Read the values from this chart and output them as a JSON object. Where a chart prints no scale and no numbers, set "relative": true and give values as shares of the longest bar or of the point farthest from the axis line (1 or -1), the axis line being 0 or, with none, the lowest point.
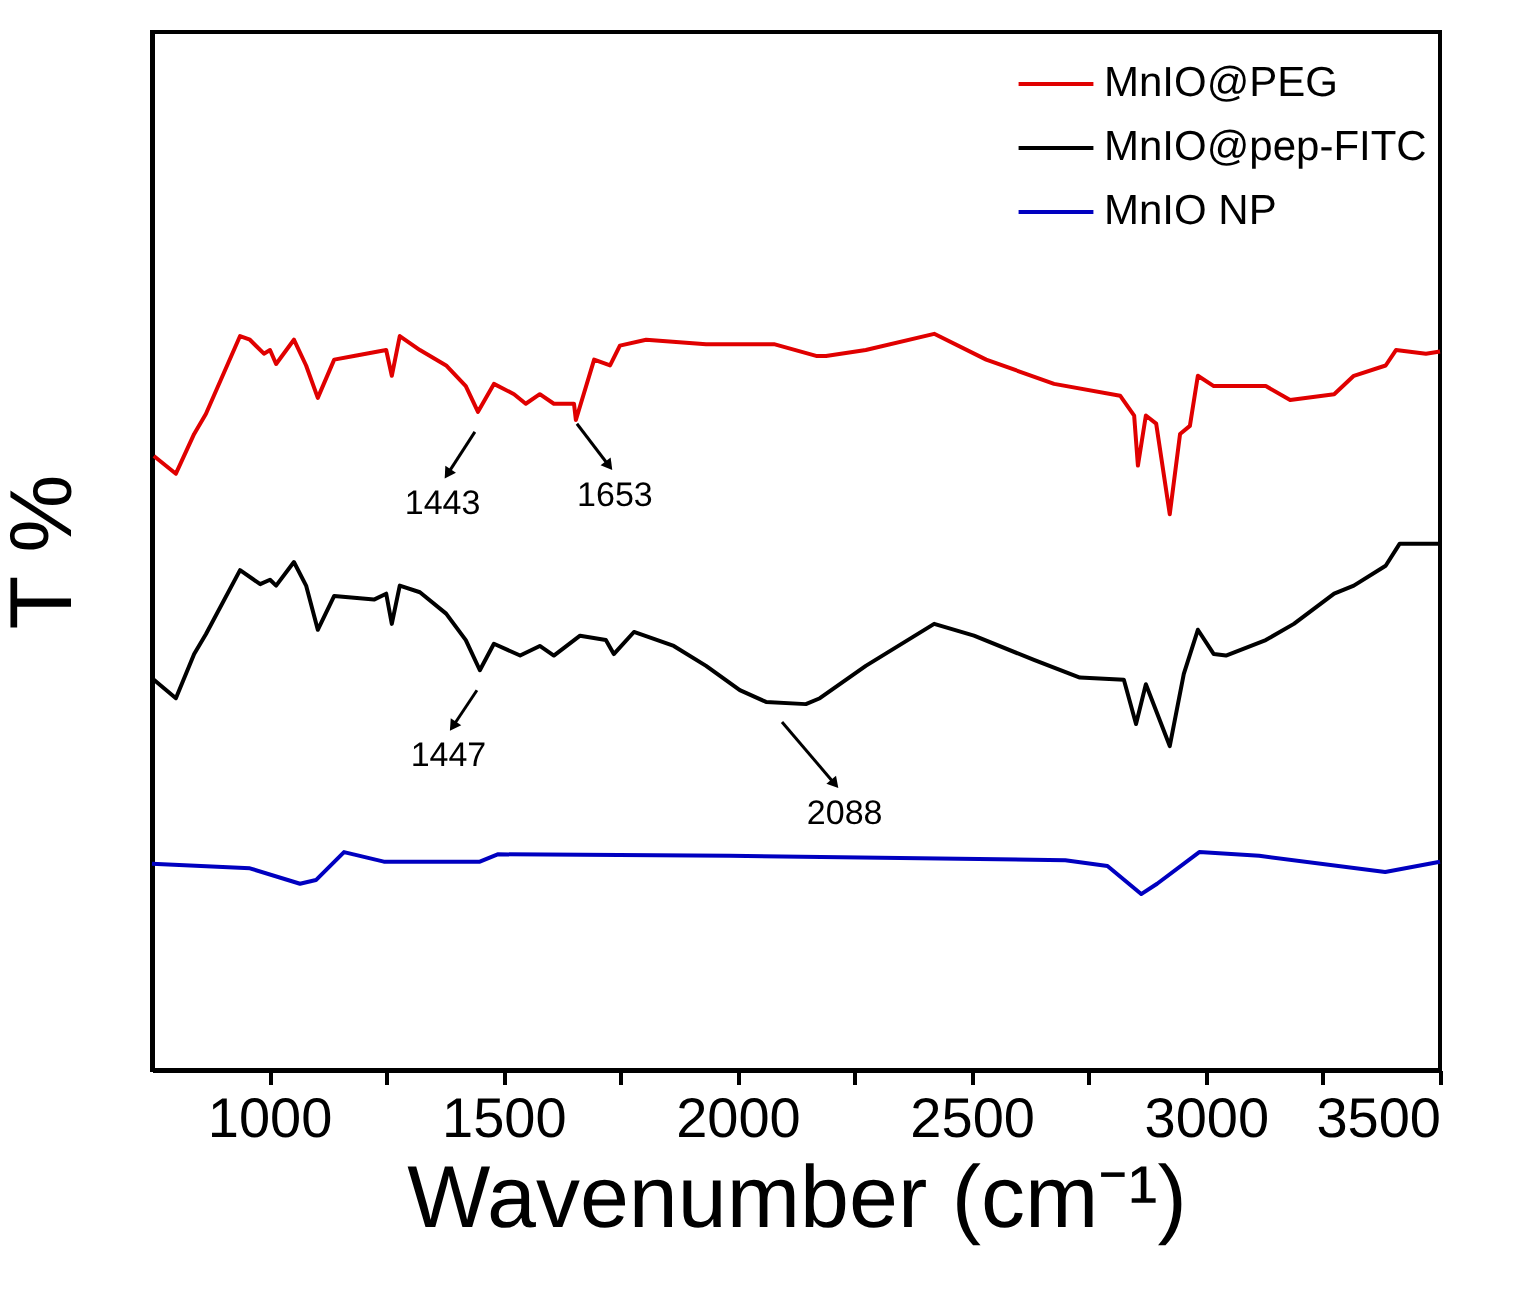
{
  "chart_data": {
    "type": "line",
    "relative": true,
    "xlabel": "Wavenumber (cm⁻¹)",
    "ylabel": "T %",
    "xlim": [
      750,
      3500
    ],
    "xticks": [
      1000,
      {
        "value": 1250,
        "label": null
      },
      1500,
      {
        "value": 1750,
        "label": null
      },
      2000,
      {
        "value": 2250,
        "label": null
      },
      2500,
      {
        "value": 2750,
        "label": null
      },
      3000,
      {
        "value": 3250,
        "label": null
      },
      3500
    ],
    "legend": "top right",
    "grid": false,
    "marker": "none",
    "line_style": "solid",
    "series": [
      {
        "name": "MnIO@PEG",
        "color": "#e00000",
        "x": [
          754,
          801,
          840,
          865,
          938,
          959,
          989,
          1002,
          1015,
          1053,
          1079,
          1104,
          1139,
          1181,
          1250,
          1262,
          1279,
          1322,
          1378,
          1420,
          1446,
          1480,
          1523,
          1548,
          1578,
          1608,
          1651,
          1655,
          1694,
          1728,
          1749,
          1805,
          1933,
          2078,
          2168,
          2189,
          2274,
          2420,
          2531,
          2676,
          2817,
          2847,
          2855,
          2872,
          2894,
          2923,
          2945,
          2966,
          2983,
          3017,
          3128,
          3180,
          3274,
          3316,
          3384,
          3406,
          3470,
          3500
        ],
        "values": [
          0.834,
          0.81,
          0.864,
          0.891,
          0.997,
          0.992,
          0.973,
          0.978,
          0.959,
          0.992,
          0.957,
          0.913,
          0.965,
          0.97,
          0.978,
          0.943,
          0.997,
          0.978,
          0.957,
          0.929,
          0.894,
          0.932,
          0.918,
          0.905,
          0.918,
          0.905,
          0.905,
          0.883,
          0.965,
          0.957,
          0.984,
          0.992,
          0.986,
          0.986,
          0.97,
          0.97,
          0.978,
          1.0,
          0.965,
          0.932,
          0.916,
          0.889,
          0.821,
          0.889,
          0.878,
          0.755,
          0.864,
          0.875,
          0.943,
          0.929,
          0.929,
          0.91,
          0.918,
          0.943,
          0.957,
          0.978,
          0.973,
          0.976
        ]
      },
      {
        "name": "MnIO@pep-FITC",
        "color": "#000000",
        "x": [
          754,
          801,
          840,
          865,
          938,
          981,
          1002,
          1015,
          1053,
          1079,
          1104,
          1139,
          1224,
          1250,
          1262,
          1279,
          1322,
          1378,
          1420,
          1450,
          1480,
          1536,
          1578,
          1608,
          1664,
          1719,
          1736,
          1779,
          1864,
          1933,
          2005,
          2061,
          2146,
          2176,
          2274,
          2420,
          2505,
          2633,
          2731,
          2825,
          2851,
          2872,
          2923,
          2953,
          2983,
          3017,
          3043,
          3128,
          3188,
          3274,
          3316,
          3384,
          3414,
          3487,
          3500
        ],
        "values": [
          0.53,
          0.505,
          0.565,
          0.592,
          0.679,
          0.66,
          0.666,
          0.658,
          0.69,
          0.658,
          0.598,
          0.644,
          0.639,
          0.647,
          0.606,
          0.658,
          0.649,
          0.62,
          0.584,
          0.543,
          0.579,
          0.563,
          0.576,
          0.563,
          0.59,
          0.584,
          0.565,
          0.595,
          0.576,
          0.549,
          0.516,
          0.5,
          0.497,
          0.505,
          0.549,
          0.606,
          0.59,
          0.557,
          0.533,
          0.53,
          0.47,
          0.524,
          0.44,
          0.538,
          0.598,
          0.565,
          0.563,
          0.584,
          0.606,
          0.647,
          0.658,
          0.685,
          0.715,
          0.715,
          0.715
        ]
      },
      {
        "name": "MnIO NP",
        "color": "#0000c0",
        "x": [
          750,
          959,
          1066,
          1100,
          1160,
          1245,
          1343,
          1450,
          1488,
          1983,
          2700,
          2790,
          2862,
          2896,
          2986,
          3114,
          3383,
          3500
        ],
        "values": [
          0.28,
          0.274,
          0.253,
          0.258,
          0.296,
          0.283,
          0.283,
          0.283,
          0.293,
          0.291,
          0.285,
          0.277,
          0.239,
          0.253,
          0.296,
          0.291,
          0.269,
          0.283
        ]
      }
    ],
    "annotations": [
      {
        "text": "1443",
        "x": 1443,
        "y": 0.894
      },
      {
        "text": "1653",
        "x": 1653,
        "y": 0.905
      },
      {
        "text": "1447",
        "x": 1447,
        "y": 0.543
      },
      {
        "text": "2088",
        "x": 2088,
        "y": 0.5
      }
    ]
  }
}
